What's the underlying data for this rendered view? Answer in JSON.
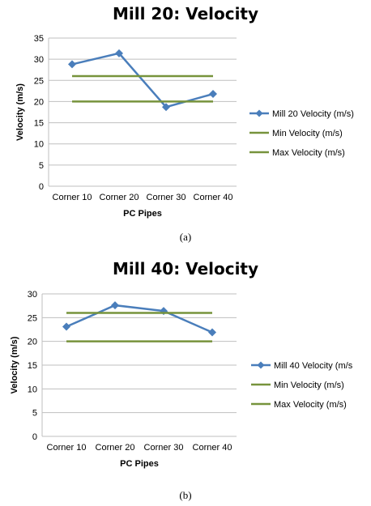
{
  "chart_data": [
    {
      "type": "line",
      "title": "Mill 20: Velocity",
      "xlabel": "PC Pipes",
      "ylabel": "Velocity (m/s)",
      "categories": [
        "Corner 10",
        "Corner 20",
        "Corner 30",
        "Corner 40"
      ],
      "ylim": [
        0,
        35
      ],
      "yticks": [
        0,
        5,
        10,
        15,
        20,
        25,
        30,
        35
      ],
      "grid": true,
      "legend_position": "right",
      "series": [
        {
          "name": "Mill 20 Velocity (m/s)",
          "values": [
            28.8,
            31.4,
            18.7,
            21.8
          ],
          "color": "#4a7ebb",
          "marker": "diamond"
        },
        {
          "name": "Min Velocity (m/s)",
          "values": [
            20,
            20,
            20,
            20
          ],
          "color": "#77933c",
          "marker": "none"
        },
        {
          "name": "Max Velocity (m/s)",
          "values": [
            26,
            26,
            26,
            26
          ],
          "color": "#77933c",
          "marker": "none"
        }
      ],
      "caption": "(a)"
    },
    {
      "type": "line",
      "title": "Mill 40: Velocity",
      "xlabel": "PC Pipes",
      "ylabel": "Velocity (m/s)",
      "categories": [
        "Corner 10",
        "Corner 20",
        "Corner 30",
        "Corner 40"
      ],
      "ylim": [
        0,
        30
      ],
      "yticks": [
        0,
        5,
        10,
        15,
        20,
        25,
        30
      ],
      "grid": true,
      "legend_position": "right",
      "series": [
        {
          "name": "Mill 40 Velocity (m/s",
          "values": [
            23.1,
            27.6,
            26.4,
            21.9
          ],
          "color": "#4a7ebb",
          "marker": "diamond"
        },
        {
          "name": "Min Velocity (m/s)",
          "values": [
            20,
            20,
            20,
            20
          ],
          "color": "#77933c",
          "marker": "none"
        },
        {
          "name": "Max Velocity (m/s)",
          "values": [
            26,
            26,
            26,
            26
          ],
          "color": "#77933c",
          "marker": "none"
        }
      ],
      "caption": "(b)"
    }
  ]
}
